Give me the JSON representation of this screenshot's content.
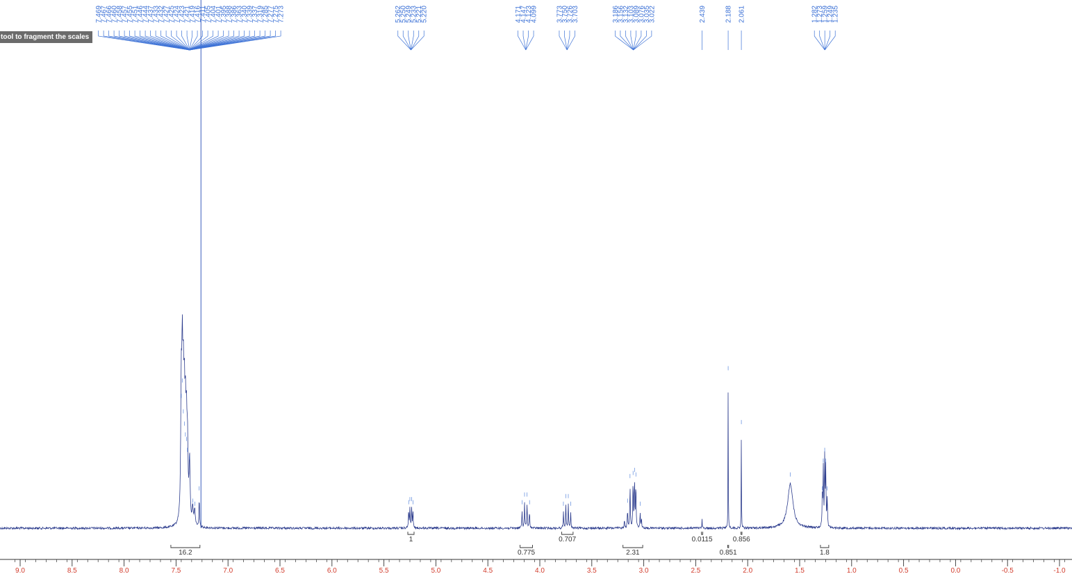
{
  "tooltip": "tool to fragment the scales",
  "colors": {
    "spectrum": "#2a3a8c",
    "peak_label": "#3d72d6",
    "integral": "#333333",
    "axis_label": "#d13a2a",
    "solvent_line": "#5a78c8"
  },
  "chart_data": {
    "type": "line",
    "title": "",
    "xlabel": "",
    "ylabel": "",
    "xlim": [
      9.1,
      -1.05
    ],
    "x_reversed": true,
    "grid": false,
    "x_ticks": [
      {
        "value": 9.0,
        "label": "9.0"
      },
      {
        "value": 8.5,
        "label": "8.5"
      },
      {
        "value": 8.0,
        "label": "8.0"
      },
      {
        "value": 7.5,
        "label": "7.5"
      },
      {
        "value": 7.0,
        "label": "7.0"
      },
      {
        "value": 6.5,
        "label": "6.5"
      },
      {
        "value": 6.0,
        "label": "6.0"
      },
      {
        "value": 5.5,
        "label": "5.5"
      },
      {
        "value": 5.0,
        "label": "5.0"
      },
      {
        "value": 4.5,
        "label": "4.5"
      },
      {
        "value": 4.0,
        "label": "4.0"
      },
      {
        "value": 3.5,
        "label": "3.5"
      },
      {
        "value": 3.0,
        "label": "3.0"
      },
      {
        "value": 2.5,
        "label": "2.5"
      },
      {
        "value": 2.0,
        "label": "2.0"
      },
      {
        "value": 1.5,
        "label": "1.5"
      },
      {
        "value": 1.0,
        "label": "1.0"
      },
      {
        "value": 0.5,
        "label": "0.5"
      },
      {
        "value": 0.0,
        "label": "0.0"
      },
      {
        "value": -0.5,
        "label": "-0.5"
      },
      {
        "value": -1.0,
        "label": "-1.0"
      }
    ],
    "peak_groups": [
      {
        "anchor": 7.37,
        "labels": [
          "7.469",
          "7.467",
          "7.466",
          "7.460",
          "7.458",
          "7.457",
          "7.455",
          "7.451",
          "7.446",
          "7.444",
          "7.437",
          "7.433",
          "7.432",
          "7.427",
          "7.425",
          "7.424",
          "7.423",
          "7.421",
          "7.419",
          "7.416",
          "7.411",
          "7.405",
          "7.404",
          "7.401",
          "7.395",
          "7.388",
          "7.386",
          "7.363",
          "7.340",
          "7.339",
          "7.337",
          "7.319",
          "7.285",
          "7.277",
          "7.275",
          "7.273"
        ]
      },
      {
        "anchor": 5.24,
        "labels": [
          "5.262",
          "5.250",
          "5.249",
          "5.233",
          "5.221",
          "5.220"
        ]
      },
      {
        "anchor": 4.135,
        "labels": [
          "4.171",
          "4.147",
          "4.123",
          "4.099"
        ]
      },
      {
        "anchor": 3.738,
        "labels": [
          "3.773",
          "3.750",
          "3.726",
          "3.703"
        ]
      },
      {
        "anchor": 3.1,
        "labels": [
          "3.186",
          "3.156",
          "3.132",
          "3.103",
          "3.089",
          "3.076",
          "3.035",
          "3.022"
        ]
      },
      {
        "anchor": 2.439,
        "labels": [
          "2.439"
        ]
      },
      {
        "anchor": 2.188,
        "labels": [
          "2.188"
        ]
      },
      {
        "anchor": 2.061,
        "labels": [
          "2.061"
        ]
      },
      {
        "anchor": 1.258,
        "labels": [
          "1.282",
          "1.273",
          "1.259",
          "1.249",
          "1.235"
        ]
      }
    ],
    "integrals": [
      {
        "from": 7.55,
        "to": 7.27,
        "value": "16.2",
        "row": 2
      },
      {
        "from": 5.27,
        "to": 5.21,
        "value": "1",
        "row": 1
      },
      {
        "from": 4.19,
        "to": 4.07,
        "value": "0.775",
        "row": 2
      },
      {
        "from": 3.79,
        "to": 3.68,
        "value": "0.707",
        "row": 1
      },
      {
        "from": 3.2,
        "to": 3.01,
        "value": "2.31",
        "row": 2
      },
      {
        "from": 2.445,
        "to": 2.432,
        "value": "0.0115",
        "row": 1
      },
      {
        "from": 2.065,
        "to": 2.055,
        "value": "0.856",
        "row": 1
      },
      {
        "from": 2.192,
        "to": 2.183,
        "value": "0.851",
        "row": 2
      },
      {
        "from": 1.3,
        "to": 1.22,
        "value": "1.8",
        "row": 2
      }
    ],
    "signals": [
      {
        "shift": 7.45,
        "height": 0.8,
        "width": 0.006
      },
      {
        "shift": 7.44,
        "height": 0.9,
        "width": 0.006
      },
      {
        "shift": 7.43,
        "height": 0.7,
        "width": 0.006
      },
      {
        "shift": 7.42,
        "height": 0.62,
        "width": 0.006
      },
      {
        "shift": 7.41,
        "height": 0.55,
        "width": 0.006
      },
      {
        "shift": 7.4,
        "height": 0.52,
        "width": 0.006
      },
      {
        "shift": 7.39,
        "height": 0.45,
        "width": 0.006
      },
      {
        "shift": 7.37,
        "height": 0.4,
        "width": 0.006
      },
      {
        "shift": 7.34,
        "height": 0.12,
        "width": 0.006
      },
      {
        "shift": 7.32,
        "height": 0.1,
        "width": 0.006
      },
      {
        "shift": 7.277,
        "height": 0.2,
        "width": 0.003
      },
      {
        "shift": 5.262,
        "height": 0.11,
        "width": 0.003
      },
      {
        "shift": 5.25,
        "height": 0.13,
        "width": 0.003
      },
      {
        "shift": 5.233,
        "height": 0.13,
        "width": 0.003
      },
      {
        "shift": 5.221,
        "height": 0.11,
        "width": 0.003
      },
      {
        "shift": 4.171,
        "height": 0.11,
        "width": 0.003
      },
      {
        "shift": 4.147,
        "height": 0.16,
        "width": 0.003
      },
      {
        "shift": 4.123,
        "height": 0.16,
        "width": 0.003
      },
      {
        "shift": 4.099,
        "height": 0.11,
        "width": 0.003
      },
      {
        "shift": 3.773,
        "height": 0.1,
        "width": 0.003
      },
      {
        "shift": 3.75,
        "height": 0.15,
        "width": 0.003
      },
      {
        "shift": 3.726,
        "height": 0.15,
        "width": 0.003
      },
      {
        "shift": 3.703,
        "height": 0.1,
        "width": 0.003
      },
      {
        "shift": 3.186,
        "height": 0.06,
        "width": 0.003
      },
      {
        "shift": 3.156,
        "height": 0.12,
        "width": 0.003
      },
      {
        "shift": 3.132,
        "height": 0.28,
        "width": 0.003
      },
      {
        "shift": 3.103,
        "height": 0.3,
        "width": 0.003
      },
      {
        "shift": 3.089,
        "height": 0.32,
        "width": 0.003
      },
      {
        "shift": 3.076,
        "height": 0.29,
        "width": 0.003
      },
      {
        "shift": 3.035,
        "height": 0.1,
        "width": 0.003
      },
      {
        "shift": 3.022,
        "height": 0.06,
        "width": 0.003
      },
      {
        "shift": 2.439,
        "height": 0.06,
        "width": 0.002
      },
      {
        "shift": 2.188,
        "height": 0.98,
        "width": 0.0015
      },
      {
        "shift": 2.061,
        "height": 0.63,
        "width": 0.0015
      },
      {
        "shift": 1.59,
        "height": 0.29,
        "width": 0.03
      },
      {
        "shift": 1.282,
        "height": 0.2,
        "width": 0.003
      },
      {
        "shift": 1.273,
        "height": 0.38,
        "width": 0.003
      },
      {
        "shift": 1.259,
        "height": 0.45,
        "width": 0.003
      },
      {
        "shift": 1.249,
        "height": 0.38,
        "width": 0.003
      },
      {
        "shift": 1.235,
        "height": 0.2,
        "width": 0.003
      }
    ],
    "solvent_line_shift": 7.26
  }
}
